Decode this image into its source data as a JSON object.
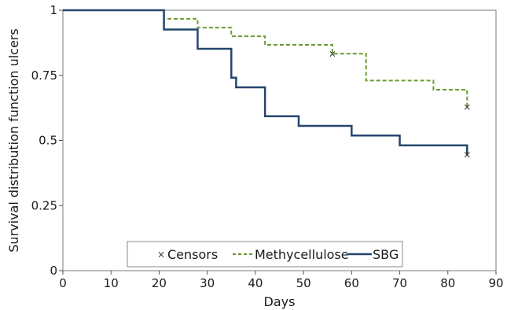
{
  "chart_data": {
    "type": "line",
    "xlabel": "Days",
    "ylabel": "Survival distribution function ulcers",
    "xlim": [
      0,
      90
    ],
    "ylim": [
      0,
      1
    ],
    "x_ticks": [
      "0",
      "10",
      "20",
      "30",
      "40",
      "50",
      "60",
      "70",
      "80",
      "90"
    ],
    "y_ticks": [
      "0",
      "0.25",
      "0.5",
      "0.75",
      "1"
    ],
    "grid": false,
    "legend_position": "bottom-center",
    "legend": [
      {
        "key": "censors",
        "label": "Censors"
      },
      {
        "key": "methycellulose",
        "label": "Methycellulose"
      },
      {
        "key": "sbg",
        "label": "SBG"
      }
    ],
    "series": [
      {
        "key": "methycellulose",
        "name": "Methycellulose",
        "style": "step-dashed",
        "color": "#6b9a2f",
        "steps": [
          [
            0,
            1.0
          ],
          [
            21,
            0.967
          ],
          [
            28,
            0.933
          ],
          [
            35,
            0.9
          ],
          [
            42,
            0.867
          ],
          [
            56,
            0.833
          ],
          [
            63,
            0.73
          ],
          [
            77,
            0.695
          ],
          [
            84,
            0.628
          ]
        ]
      },
      {
        "key": "sbg",
        "name": "SBG",
        "style": "step-solid",
        "color": "#24466e",
        "steps": [
          [
            0,
            1.0
          ],
          [
            21,
            0.926
          ],
          [
            28,
            0.852
          ],
          [
            35,
            0.741
          ],
          [
            36,
            0.704
          ],
          [
            42,
            0.593
          ],
          [
            49,
            0.556
          ],
          [
            60,
            0.519
          ],
          [
            70,
            0.481
          ],
          [
            84,
            0.445
          ]
        ]
      }
    ],
    "censors": [
      {
        "series": "methycellulose",
        "x": 56,
        "y": 0.833
      },
      {
        "series": "methycellulose",
        "x": 84,
        "y": 0.628
      },
      {
        "series": "sbg",
        "x": 84,
        "y": 0.445
      }
    ],
    "colors": {
      "censor_marker": "#333333",
      "axis": "#555555",
      "legend_border": "#888888"
    }
  }
}
